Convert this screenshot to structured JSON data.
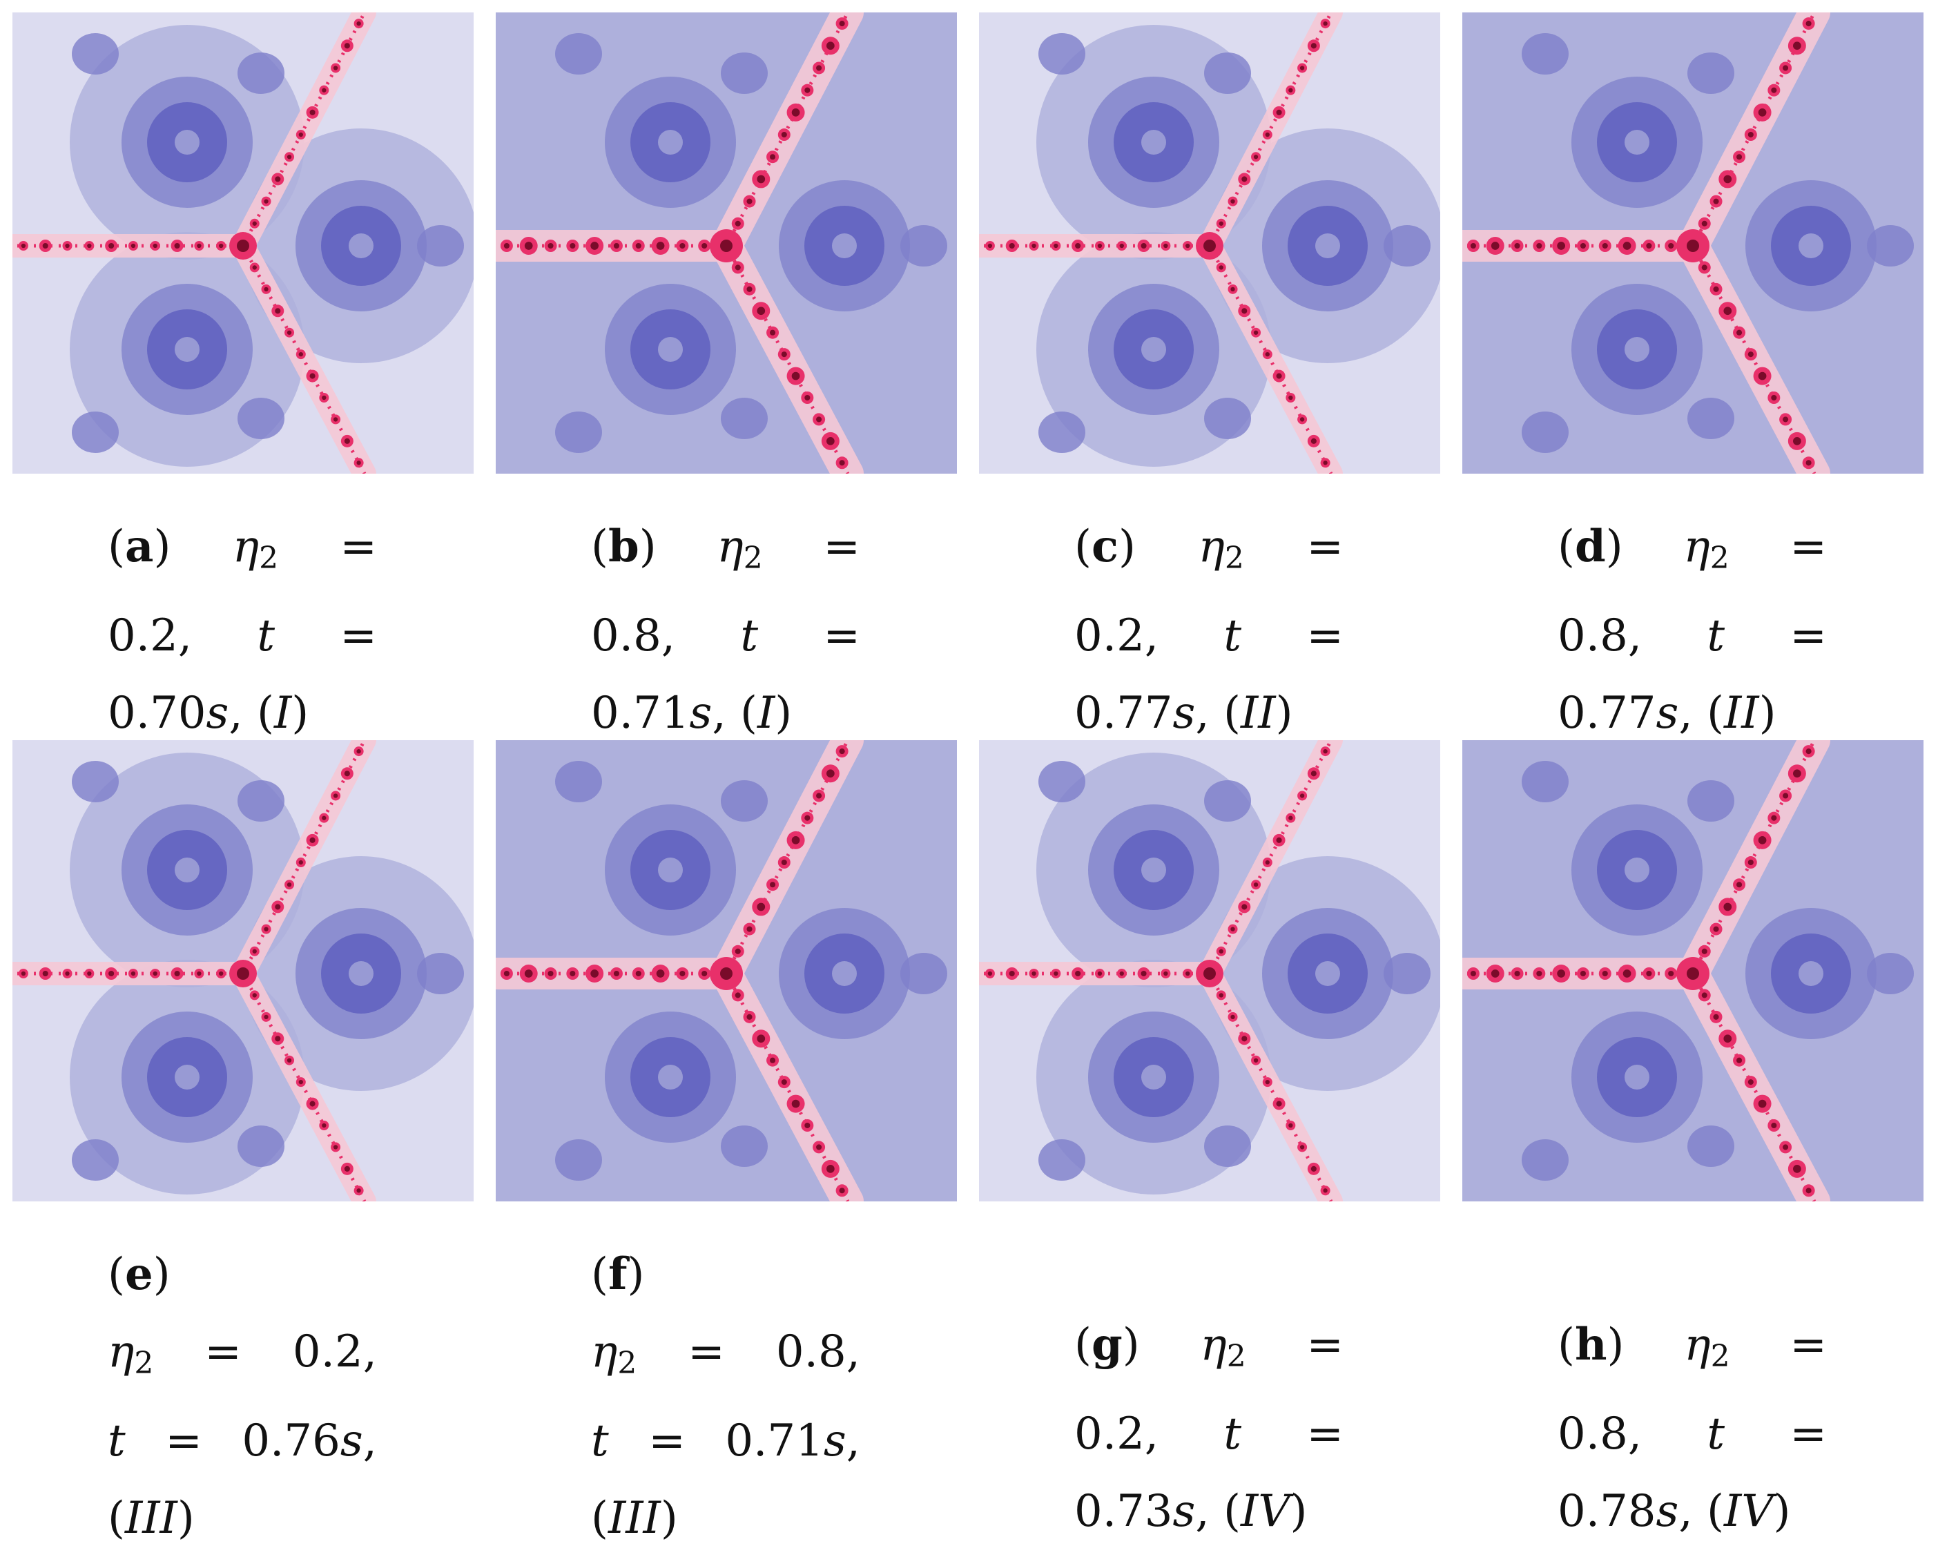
{
  "colors": {
    "background_light": "#dcdcf0",
    "basin_mid": "#aeb0dc",
    "basin_dark": "#7e80cb",
    "root_core": "#5f60c0",
    "fractal_pink": "#e8306a",
    "fractal_dark": "#7a0b2a"
  },
  "figure": {
    "panels": [
      {
        "label": "a",
        "eta_symbol": "η",
        "eta_sub": "2",
        "eta_value": "0.2",
        "t_symbol": "t",
        "t_value": "0.70",
        "t_unit": "s",
        "case": "I"
      },
      {
        "label": "b",
        "eta_symbol": "η",
        "eta_sub": "2",
        "eta_value": "0.8",
        "t_symbol": "t",
        "t_value": "0.71",
        "t_unit": "s",
        "case": "I"
      },
      {
        "label": "c",
        "eta_symbol": "η",
        "eta_sub": "2",
        "eta_value": "0.2",
        "t_symbol": "t",
        "t_value": "0.77",
        "t_unit": "s",
        "case": "II"
      },
      {
        "label": "d",
        "eta_symbol": "η",
        "eta_sub": "2",
        "eta_value": "0.8",
        "t_symbol": "t",
        "t_value": "0.77",
        "t_unit": "s",
        "case": "II"
      },
      {
        "label": "e",
        "eta_symbol": "η",
        "eta_sub": "2",
        "eta_value": "0.2",
        "t_symbol": "t",
        "t_value": "0.76",
        "t_unit": "s",
        "case": "III"
      },
      {
        "label": "f",
        "eta_symbol": "η",
        "eta_sub": "2",
        "eta_value": "0.8",
        "t_symbol": "t",
        "t_value": "0.71",
        "t_unit": "s",
        "case": "III"
      },
      {
        "label": "g",
        "eta_symbol": "η",
        "eta_sub": "2",
        "eta_value": "0.2",
        "t_symbol": "t",
        "t_value": "0.73",
        "t_unit": "s",
        "case": "IV"
      },
      {
        "label": "h",
        "eta_symbol": "η",
        "eta_sub": "2",
        "eta_value": "0.8",
        "t_symbol": "t",
        "t_value": "0.78",
        "t_unit": "s",
        "case": "IV"
      }
    ]
  }
}
